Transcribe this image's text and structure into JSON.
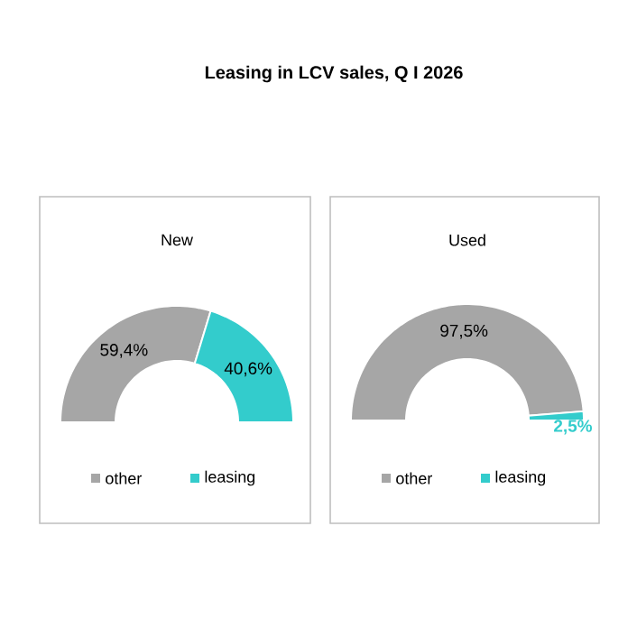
{
  "chart_data": [
    {
      "type": "donut",
      "title": "Leasing in LCV sales, Q I 2026",
      "subtitle": "New",
      "categories": [
        "other",
        "leasing"
      ],
      "values": [
        59.4,
        40.6
      ],
      "value_labels": [
        "59,4%",
        "40,6%"
      ],
      "colors": [
        "#a6a6a6",
        "#33cccc"
      ],
      "legend": "bottom"
    },
    {
      "type": "donut",
      "subtitle": "Used",
      "categories": [
        "other",
        "leasing"
      ],
      "values": [
        97.5,
        2.5
      ],
      "value_labels": [
        "97,5%",
        "2,5%"
      ],
      "colors": [
        "#a6a6a6",
        "#33cccc"
      ],
      "legend": "bottom"
    }
  ]
}
